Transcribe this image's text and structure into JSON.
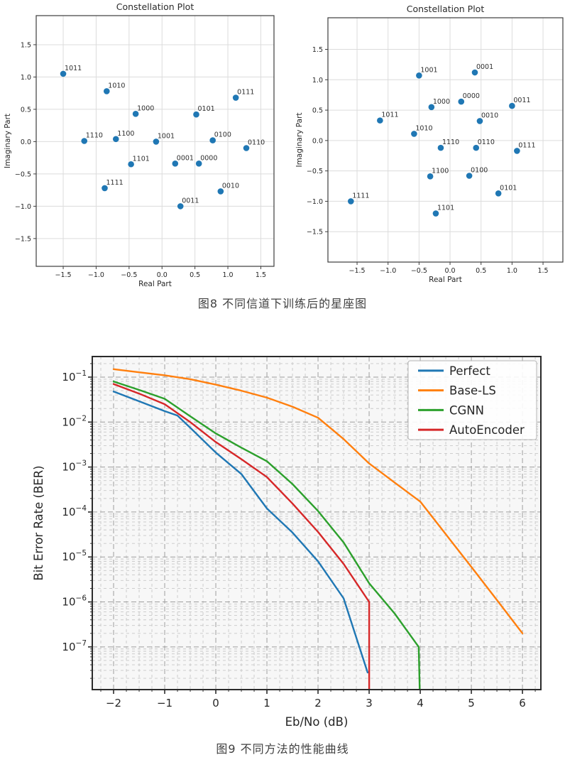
{
  "page": {
    "background": "#ffffff"
  },
  "figure8": {
    "caption": "图8 不同信道下训练后的星座图"
  },
  "figure9": {
    "caption": "图9 不同方法的性能曲线"
  },
  "colors": {
    "marker": "#1f77b4",
    "perfect": "#1f77b4",
    "base_ls": "#ff7f0e",
    "cgnn": "#2ca02c",
    "autoencoder": "#d62728",
    "grid_major": "#9e9e9e",
    "grid_minor": "#c8c8c8",
    "spine": "#2a2a2a",
    "text": "#262626"
  },
  "chart_data": [
    {
      "id": "constellation-left",
      "type": "scatter",
      "title": "Constellation Plot",
      "xlabel": "Real Part",
      "ylabel": "Imaginary Part",
      "xlim": [
        -1.91,
        1.7
      ],
      "ylim": [
        -1.93,
        1.95
      ],
      "xticks": [
        -1.5,
        -1.0,
        -0.5,
        0.0,
        0.5,
        1.0,
        1.5
      ],
      "yticks": [
        -1.5,
        -1.0,
        -0.5,
        0.0,
        0.5,
        1.0,
        1.5
      ],
      "grid": true,
      "marker_color": "#1f77b4",
      "points": [
        {
          "label": "1011",
          "x": -1.5,
          "y": 1.05
        },
        {
          "label": "1010",
          "x": -0.84,
          "y": 0.78
        },
        {
          "label": "0111",
          "x": 1.12,
          "y": 0.68
        },
        {
          "label": "1000",
          "x": -0.4,
          "y": 0.43
        },
        {
          "label": "0101",
          "x": 0.52,
          "y": 0.42
        },
        {
          "label": "1110",
          "x": -1.18,
          "y": 0.01
        },
        {
          "label": "1100",
          "x": -0.7,
          "y": 0.04
        },
        {
          "label": "1001",
          "x": -0.09,
          "y": 0.0
        },
        {
          "label": "0100",
          "x": 0.77,
          "y": 0.02
        },
        {
          "label": "0110",
          "x": 1.28,
          "y": -0.1
        },
        {
          "label": "1101",
          "x": -0.47,
          "y": -0.35
        },
        {
          "label": "0001",
          "x": 0.2,
          "y": -0.34
        },
        {
          "label": "0000",
          "x": 0.56,
          "y": -0.34
        },
        {
          "label": "1111",
          "x": -0.87,
          "y": -0.72
        },
        {
          "label": "0010",
          "x": 0.89,
          "y": -0.77
        },
        {
          "label": "0011",
          "x": 0.28,
          "y": -1.0
        }
      ]
    },
    {
      "id": "constellation-right",
      "type": "scatter",
      "title": "Constellation Plot",
      "xlabel": "Real Part",
      "ylabel": "Imaginary Part",
      "xlim": [
        -1.97,
        1.82
      ],
      "ylim": [
        -2.0,
        2.02
      ],
      "xticks": [
        -1.5,
        -1.0,
        -0.5,
        0.0,
        0.5,
        1.0,
        1.5
      ],
      "yticks": [
        -1.5,
        -1.0,
        -0.5,
        0.0,
        0.5,
        1.0,
        1.5
      ],
      "grid": true,
      "marker_color": "#1f77b4",
      "points": [
        {
          "label": "1001",
          "x": -0.5,
          "y": 1.07
        },
        {
          "label": "0001",
          "x": 0.4,
          "y": 1.12
        },
        {
          "label": "0000",
          "x": 0.18,
          "y": 0.64
        },
        {
          "label": "1000",
          "x": -0.3,
          "y": 0.55
        },
        {
          "label": "0011",
          "x": 1.0,
          "y": 0.57
        },
        {
          "label": "1011",
          "x": -1.13,
          "y": 0.33
        },
        {
          "label": "0010",
          "x": 0.48,
          "y": 0.32
        },
        {
          "label": "1010",
          "x": -0.58,
          "y": 0.11
        },
        {
          "label": "1110",
          "x": -0.15,
          "y": -0.12
        },
        {
          "label": "0110",
          "x": 0.42,
          "y": -0.12
        },
        {
          "label": "0111",
          "x": 1.08,
          "y": -0.17
        },
        {
          "label": "1100",
          "x": -0.32,
          "y": -0.59
        },
        {
          "label": "0100",
          "x": 0.31,
          "y": -0.58
        },
        {
          "label": "0101",
          "x": 0.78,
          "y": -0.87
        },
        {
          "label": "1111",
          "x": -1.6,
          "y": -1.0
        },
        {
          "label": "1101",
          "x": -0.23,
          "y": -1.2
        }
      ]
    },
    {
      "id": "ber",
      "type": "line",
      "xlabel": "Eb/No (dB)",
      "ylabel": "Bit Error Rate (BER)",
      "y_scale": "log",
      "xlim": [
        -2.417,
        6.36
      ],
      "ylim_log10": [
        -7.95,
        -0.542
      ],
      "xticks": [
        -2,
        -1,
        0,
        1,
        2,
        3,
        4,
        5,
        6
      ],
      "ytick_exponents": [
        -1,
        -2,
        -3,
        -4,
        -5,
        -6,
        -7
      ],
      "x_minor_step": 0.25,
      "grid": "major and minor, dashed",
      "legend_position": "upper right",
      "series": [
        {
          "name": "Perfect",
          "color": "#1f77b4",
          "points": [
            [
              -2,
              0.048
            ],
            [
              -1.5,
              0.029
            ],
            [
              -1,
              0.0175
            ],
            [
              -0.75,
              0.014
            ],
            [
              -0.5,
              0.0075
            ],
            [
              0,
              0.0021
            ],
            [
              0.5,
              0.0007
            ],
            [
              1,
              0.00012
            ],
            [
              1.5,
              3.5e-05
            ],
            [
              2,
              8e-06
            ],
            [
              2.5,
              1.2e-06
            ],
            [
              2.97,
              2.7e-08
            ]
          ]
        },
        {
          "name": "Base-LS",
          "color": "#ff7f0e",
          "points": [
            [
              -2,
              0.15
            ],
            [
              -1.5,
              0.128
            ],
            [
              -1,
              0.11
            ],
            [
              -0.5,
              0.09
            ],
            [
              0,
              0.068
            ],
            [
              0.5,
              0.05
            ],
            [
              1,
              0.035
            ],
            [
              1.5,
              0.022
            ],
            [
              2,
              0.0125
            ],
            [
              2.5,
              0.0042
            ],
            [
              3,
              0.0012
            ],
            [
              3.5,
              0.00045
            ],
            [
              4,
              0.00017
            ],
            [
              4.5,
              3.2e-05
            ],
            [
              5,
              6e-06
            ],
            [
              5.5,
              1.1e-06
            ],
            [
              6,
              2e-07
            ]
          ]
        },
        {
          "name": "CGNN",
          "color": "#2ca02c",
          "points": [
            [
              -2,
              0.08
            ],
            [
              -1.5,
              0.052
            ],
            [
              -1,
              0.033
            ],
            [
              -0.5,
              0.0135
            ],
            [
              0,
              0.0056
            ],
            [
              0.5,
              0.0027
            ],
            [
              1,
              0.00135
            ],
            [
              1.5,
              0.00042
            ],
            [
              2,
              0.000105
            ],
            [
              2.5,
              2.1e-05
            ],
            [
              3,
              2.6e-06
            ],
            [
              3.5,
              5.5e-07
            ],
            [
              3.97,
              1e-07
            ],
            [
              3.99,
              1.13e-08
            ]
          ]
        },
        {
          "name": "AutoEncoder",
          "color": "#d62728",
          "points": [
            [
              -2,
              0.07
            ],
            [
              -1.5,
              0.043
            ],
            [
              -1,
              0.025
            ],
            [
              -0.5,
              0.01
            ],
            [
              0,
              0.0036
            ],
            [
              0.5,
              0.0015
            ],
            [
              1,
              0.0006
            ],
            [
              1.5,
              0.000155
            ],
            [
              2,
              3.6e-05
            ],
            [
              2.5,
              7e-06
            ],
            [
              3,
              1e-06
            ],
            [
              3,
              1.13e-08
            ]
          ]
        }
      ]
    }
  ]
}
